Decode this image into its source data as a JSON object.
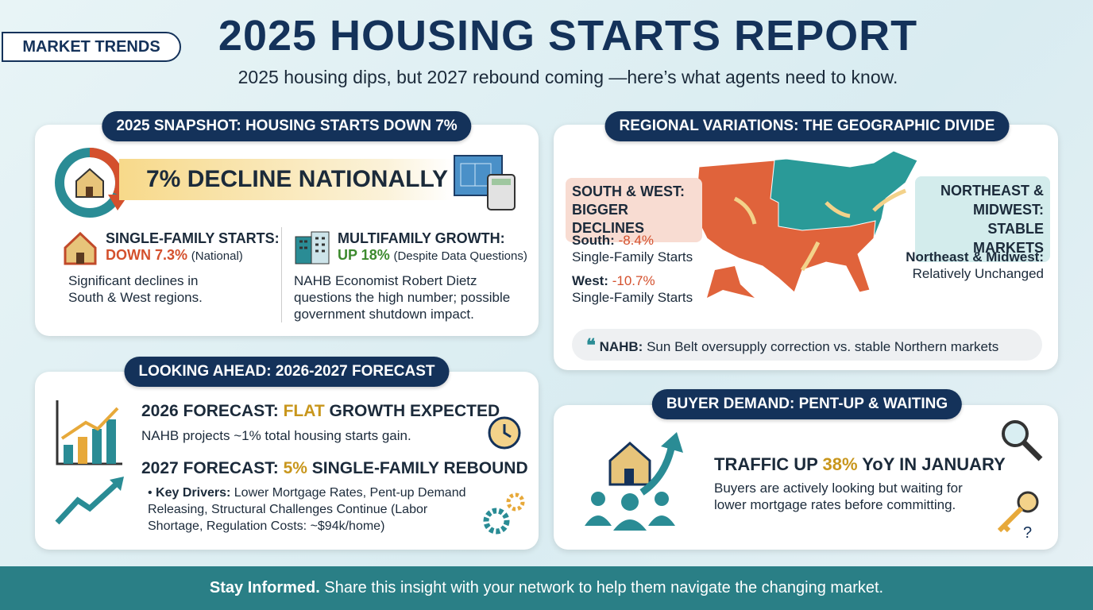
{
  "header": {
    "badge": "MARKET TRENDS",
    "title": "2025 HOUSING STARTS REPORT",
    "subtitle": "2025 housing dips, but 2027 rebound coming —here’s what agents need to know."
  },
  "snapshot": {
    "heading": "2025 SNAPSHOT: HOUSING STARTS DOWN 7%",
    "banner": "7% DECLINE NATIONALLY",
    "single_family": {
      "title": "SINGLE-FAMILY STARTS:",
      "stat": "DOWN 7.3%",
      "note": "(National)",
      "text": "Significant declines in South & West regions."
    },
    "multifamily": {
      "title": "MULTIFAMILY GROWTH:",
      "stat": "UP 18%",
      "note": "(Despite Data Questions)",
      "text": "NAHB Economist Robert Dietz questions the high number; possible government shutdown impact."
    }
  },
  "regional": {
    "heading": "REGIONAL VARIATIONS: THE GEOGRAPHIC DIVIDE",
    "south_west_label": "SOUTH & WEST: BIGGER DECLINES",
    "stats": [
      {
        "label": "South:",
        "value": "-8.4%",
        "text": "Single-Family Starts"
      },
      {
        "label": "West:",
        "value": "-10.7%",
        "text": "Single-Family Starts"
      }
    ],
    "northeast_label": "NORTHEAST & MIDWEST: STABLE MARKETS",
    "northeast_stat": {
      "label": "Northeast & Midwest:",
      "text": "Relatively Unchanged"
    },
    "quote": {
      "source": "NAHB:",
      "text": "Sun Belt oversupply correction vs. stable Northern markets"
    }
  },
  "forecast": {
    "heading": "LOOKING AHEAD: 2026-2027 FORECAST",
    "f2026": {
      "prefix": "2026 FORECAST:",
      "highlight": "FLAT",
      "suffix": "GROWTH EXPECTED",
      "text": "NAHB projects ~1% total housing starts gain."
    },
    "f2027": {
      "prefix": "2027 FORECAST:",
      "highlight": "5%",
      "suffix": "SINGLE-FAMILY REBOUND",
      "drivers_label": "Key Drivers:",
      "drivers_text": "Lower Mortgage Rates, Pent-up Demand Releasing, Structural Challenges Continue (Labor Shortage, Regulation Costs: ~$94k/home)"
    }
  },
  "demand": {
    "heading": "BUYER DEMAND: PENT-UP & WAITING",
    "prefix": "TRAFFIC UP",
    "highlight": "38%",
    "suffix": "YoY IN JANUARY",
    "text": "Buyers are actively looking but waiting for lower mortgage rates before committing."
  },
  "footer": {
    "lead": "Stay Informed.",
    "text": "Share this insight with your network to help them navigate the changing market."
  }
}
